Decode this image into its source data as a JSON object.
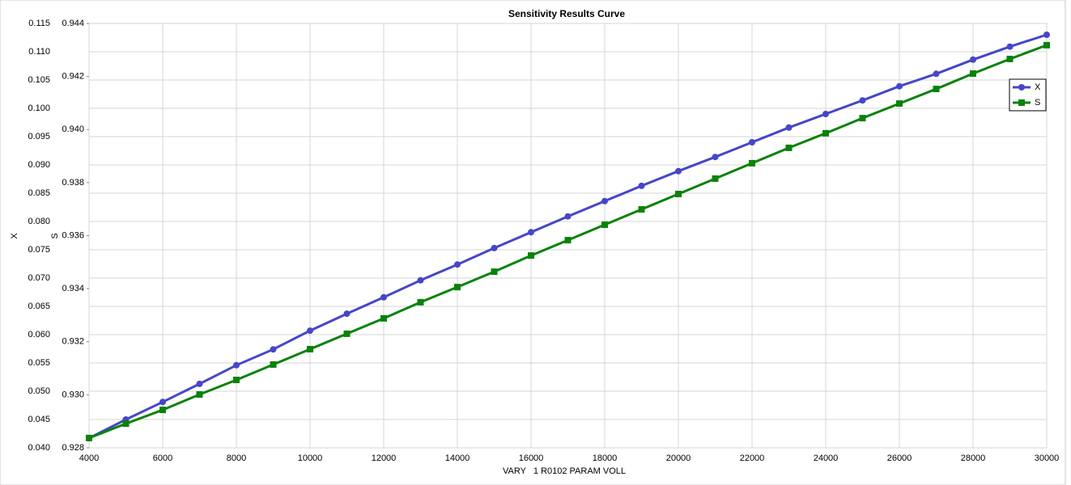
{
  "chart_data": {
    "type": "line",
    "title": "Sensitivity Results Curve",
    "xlabel": "VARY   1 R0102 PARAM VOLL",
    "ylabel": "X",
    "y2label": "S",
    "x": [
      4000,
      5000,
      6000,
      7000,
      8000,
      9000,
      10000,
      11000,
      12000,
      13000,
      14000,
      15000,
      16000,
      17000,
      18000,
      19000,
      20000,
      21000,
      22000,
      23000,
      24000,
      25000,
      26000,
      27000,
      28000,
      29000,
      30000
    ],
    "series": [
      {
        "name": "X",
        "color": "#4646c8",
        "marker": "circle",
        "values": [
          0.0417,
          0.045,
          0.0481,
          0.0513,
          0.0546,
          0.0574,
          0.0607,
          0.0637,
          0.0666,
          0.0696,
          0.0724,
          0.0753,
          0.0781,
          0.0809,
          0.0836,
          0.0863,
          0.0889,
          0.0914,
          0.094,
          0.0966,
          0.099,
          0.1014,
          0.1039,
          0.1061,
          0.1086,
          0.1109,
          0.113
        ]
      },
      {
        "name": "S",
        "color": "#0a820a",
        "marker": "square",
        "axis": "y2",
        "values": [
          0.92837,
          0.92891,
          0.92943,
          0.93001,
          0.93056,
          0.93114,
          0.93172,
          0.9323,
          0.93288,
          0.93349,
          0.93406,
          0.93464,
          0.93525,
          0.93583,
          0.93641,
          0.93699,
          0.93757,
          0.93815,
          0.93873,
          0.93931,
          0.93986,
          0.94043,
          0.94098,
          0.94153,
          0.94211,
          0.94266,
          0.94318
        ]
      }
    ],
    "xlim": [
      4000,
      30000
    ],
    "xticks": [
      4000,
      6000,
      8000,
      10000,
      12000,
      14000,
      16000,
      18000,
      20000,
      22000,
      24000,
      26000,
      28000,
      30000
    ],
    "ylim": [
      0.04,
      0.115
    ],
    "yticks": [
      {
        "value": 0.04,
        "label": "0.040"
      },
      0.045,
      {
        "value": 0.05,
        "label": "0.050"
      },
      0.055,
      {
        "value": 0.06,
        "label": "0.060"
      },
      0.065,
      {
        "value": 0.07,
        "label": "0.070"
      },
      0.075,
      {
        "value": 0.08,
        "label": "0.080"
      },
      0.085,
      {
        "value": 0.09,
        "label": "0.090"
      },
      0.095,
      {
        "value": 0.1,
        "label": "0.100"
      },
      0.105,
      {
        "value": 0.11,
        "label": "0.110"
      },
      0.115
    ],
    "y2lim": [
      0.928,
      0.944
    ],
    "y2ticks": [
      0.928,
      {
        "value": 0.93,
        "label": "0.930"
      },
      0.932,
      0.934,
      0.936,
      0.938,
      {
        "value": 0.94,
        "label": "0.940"
      },
      0.942,
      0.944
    ],
    "grid": true,
    "legend": "upper right"
  }
}
